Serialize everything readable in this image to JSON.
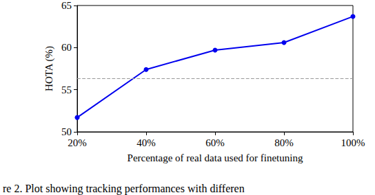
{
  "chart_data": {
    "type": "line",
    "x_label": "Percentage of real data used for finetuning",
    "y_label": "HOTA (%)",
    "caption": "re 2. Plot showing tracking performances with differen",
    "categories": [
      "20%",
      "40%",
      "60%",
      "80%",
      "100%"
    ],
    "values": [
      51.7,
      57.4,
      59.7,
      60.6,
      63.7
    ],
    "color": "#0000ee",
    "marker": "circle",
    "ylim": [
      50,
      65
    ],
    "yticks": [
      50,
      55,
      60,
      65
    ],
    "grid": false,
    "reference": {
      "value": 56.3,
      "color": "#999999",
      "line_style": "dashed"
    }
  }
}
